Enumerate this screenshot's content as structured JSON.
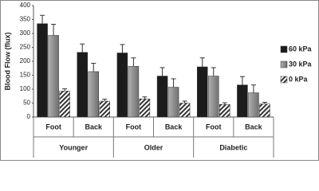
{
  "chart_data": {
    "type": "bar",
    "y_label": "Blood Flow (flux)",
    "categories": [
      "Foot",
      "Back",
      "Foot",
      "Back",
      "Foot",
      "Back"
    ],
    "groups": [
      "Younger",
      "Older",
      "Diabetic"
    ],
    "series": [
      {
        "name": "60 kPa",
        "color": "#1c1c1c",
        "values": [
          335,
          232,
          230,
          147,
          180,
          115
        ],
        "errors": [
          30,
          30,
          30,
          30,
          32,
          30
        ]
      },
      {
        "name": "30 kPa",
        "color": "#8c8c8c",
        "values": [
          293,
          163,
          182,
          107,
          147,
          87
        ],
        "errors": [
          40,
          30,
          30,
          30,
          30,
          28
        ]
      },
      {
        "name": "0 kPa",
        "color": "#333333",
        "pattern": "hatch",
        "values": [
          93,
          57,
          65,
          50,
          45,
          47
        ],
        "errors": [
          8,
          7,
          7,
          7,
          6,
          6
        ]
      }
    ],
    "ylim": [
      0,
      400
    ],
    "yticks": [
      0,
      50,
      100,
      150,
      200,
      250,
      300,
      350,
      400
    ]
  }
}
